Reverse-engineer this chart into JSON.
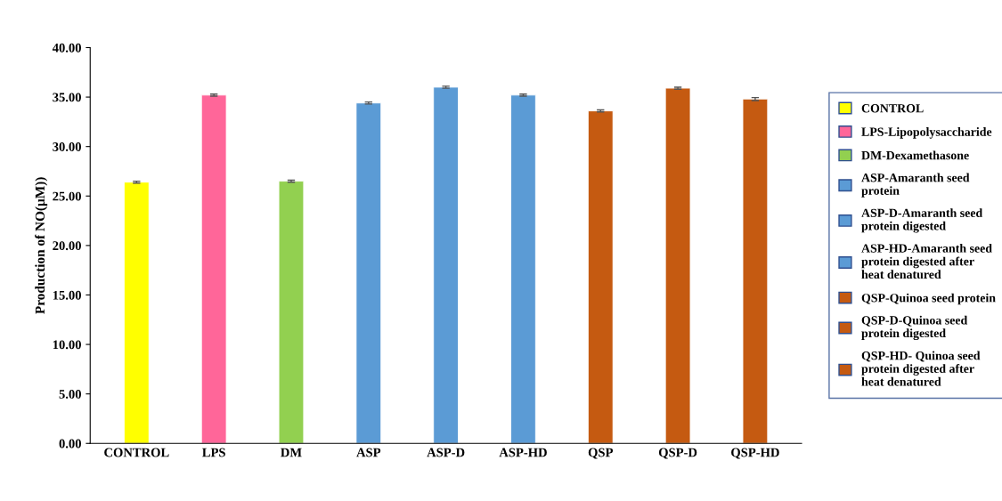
{
  "chart_data": {
    "type": "bar",
    "ylabel": "Production of NO(µM))",
    "categories": [
      "CONTROL",
      "LPS",
      "DM",
      "ASP",
      "ASP-D",
      "ASP-HD",
      "QSP",
      "QSP-D",
      "QSP-HD"
    ],
    "series": [
      {
        "name": "CONTROL",
        "color": "#ffff00",
        "values": [
          26.4,
          null,
          null,
          null,
          null,
          null,
          null,
          null,
          null
        ],
        "errors": [
          0.1,
          null,
          null,
          null,
          null,
          null,
          null,
          null,
          null
        ]
      },
      {
        "name": "LPS-Lipopolysaccharide",
        "color": "#ff6699",
        "values": [
          null,
          35.2,
          null,
          null,
          null,
          null,
          null,
          null,
          null
        ],
        "errors": [
          null,
          0.1,
          null,
          null,
          null,
          null,
          null,
          null,
          null
        ]
      },
      {
        "name": "DM-Dexamethasone",
        "color": "#92d050",
        "values": [
          null,
          null,
          26.5,
          null,
          null,
          null,
          null,
          null,
          null
        ],
        "errors": [
          null,
          null,
          0.1,
          null,
          null,
          null,
          null,
          null,
          null
        ]
      },
      {
        "name": "ASP-Amaranth seed protein",
        "color": "#5b9bd5",
        "values": [
          null,
          null,
          null,
          34.4,
          null,
          null,
          null,
          null,
          null
        ],
        "errors": [
          null,
          null,
          null,
          0.1,
          null,
          null,
          null,
          null,
          null
        ]
      },
      {
        "name": "ASP-D-Amaranth seed protein digested",
        "color": "#5b9bd5",
        "values": [
          null,
          null,
          null,
          null,
          36.0,
          null,
          null,
          null,
          null
        ],
        "errors": [
          null,
          null,
          null,
          null,
          0.1,
          null,
          null,
          null,
          null
        ]
      },
      {
        "name": "ASP-HD-Amaranth seed protein digested after heat denatured",
        "color": "#5b9bd5",
        "values": [
          null,
          null,
          null,
          null,
          null,
          35.2,
          null,
          null,
          null
        ],
        "errors": [
          null,
          null,
          null,
          null,
          null,
          0.1,
          null,
          null,
          null
        ]
      },
      {
        "name": "QSP-Quinoa seed protein",
        "color": "#c55a11",
        "values": [
          null,
          null,
          null,
          null,
          null,
          null,
          33.6,
          null,
          null
        ],
        "errors": [
          null,
          null,
          null,
          null,
          null,
          null,
          0.1,
          null,
          null
        ]
      },
      {
        "name": "QSP-D-Quinoa seed protein digested",
        "color": "#c55a11",
        "values": [
          null,
          null,
          null,
          null,
          null,
          null,
          null,
          35.9,
          null
        ],
        "errors": [
          null,
          null,
          null,
          null,
          null,
          null,
          null,
          0.1,
          null
        ]
      },
      {
        "name": "QSP-HD- Quinoa seed protein digested after heat denatured",
        "color": "#c55a11",
        "values": [
          null,
          null,
          null,
          null,
          null,
          null,
          null,
          null,
          34.8
        ],
        "errors": [
          null,
          null,
          null,
          null,
          null,
          null,
          null,
          null,
          0.15
        ]
      }
    ],
    "ylim": [
      0,
      40
    ],
    "yticks": [
      {
        "value": 0,
        "label": "0.00"
      },
      {
        "value": 5,
        "label": "5.00"
      },
      {
        "value": 10,
        "label": "10.00"
      },
      {
        "value": 15,
        "label": "15.00"
      },
      {
        "value": 20,
        "label": "20.00"
      },
      {
        "value": 25,
        "label": "25.00"
      },
      {
        "value": 30,
        "label": "30.00"
      },
      {
        "value": 35,
        "label": "35.00"
      },
      {
        "value": 40,
        "label": "40.00"
      }
    ],
    "grid": false,
    "legend": "right"
  }
}
